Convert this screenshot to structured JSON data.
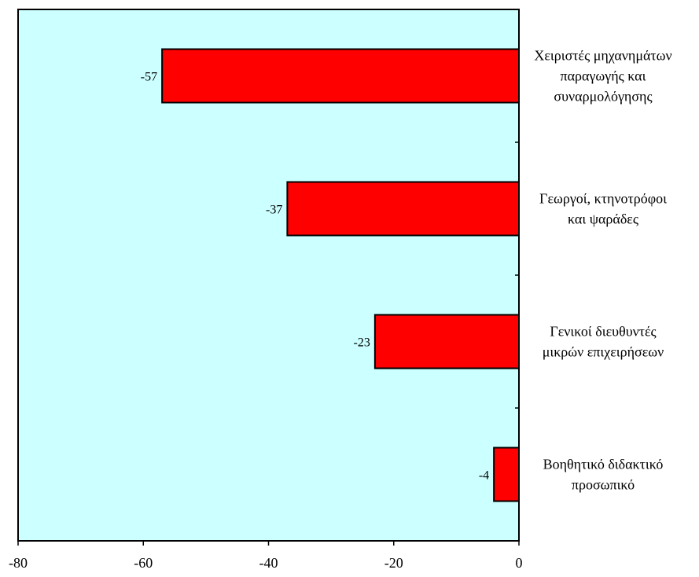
{
  "chart_data": {
    "type": "bar",
    "orientation": "horizontal",
    "categories": [
      [
        "Χειριστές μηχανημάτων",
        "παραγωγής και",
        "συναρμολόγησης"
      ],
      [
        "Γεωργοί, κτηνοτρόφοι",
        "και ψαράδες"
      ],
      [
        "Γενικοί διευθυντές",
        "μικρών επιχειρήσεων"
      ],
      [
        "Βοηθητικό διδακτικό",
        "προσωπικό"
      ]
    ],
    "values": [
      -57,
      -37,
      -23,
      -4
    ],
    "data_labels": [
      "-57",
      "-37",
      "-23",
      "-4"
    ],
    "xlim": [
      -80,
      0
    ],
    "x_ticks": [
      -80,
      -60,
      -40,
      -20,
      0
    ],
    "x_tick_labels": [
      "-80",
      "-60",
      "-40",
      "-20",
      "0"
    ],
    "category_axis_position": "right",
    "grid": false,
    "legend": "none",
    "title": "",
    "xlabel": "",
    "ylabel": ""
  },
  "colors": {
    "plot_background": "#ccffff",
    "bar_fill": "#ff0000",
    "bar_stroke": "#000000",
    "axis": "#000000"
  }
}
